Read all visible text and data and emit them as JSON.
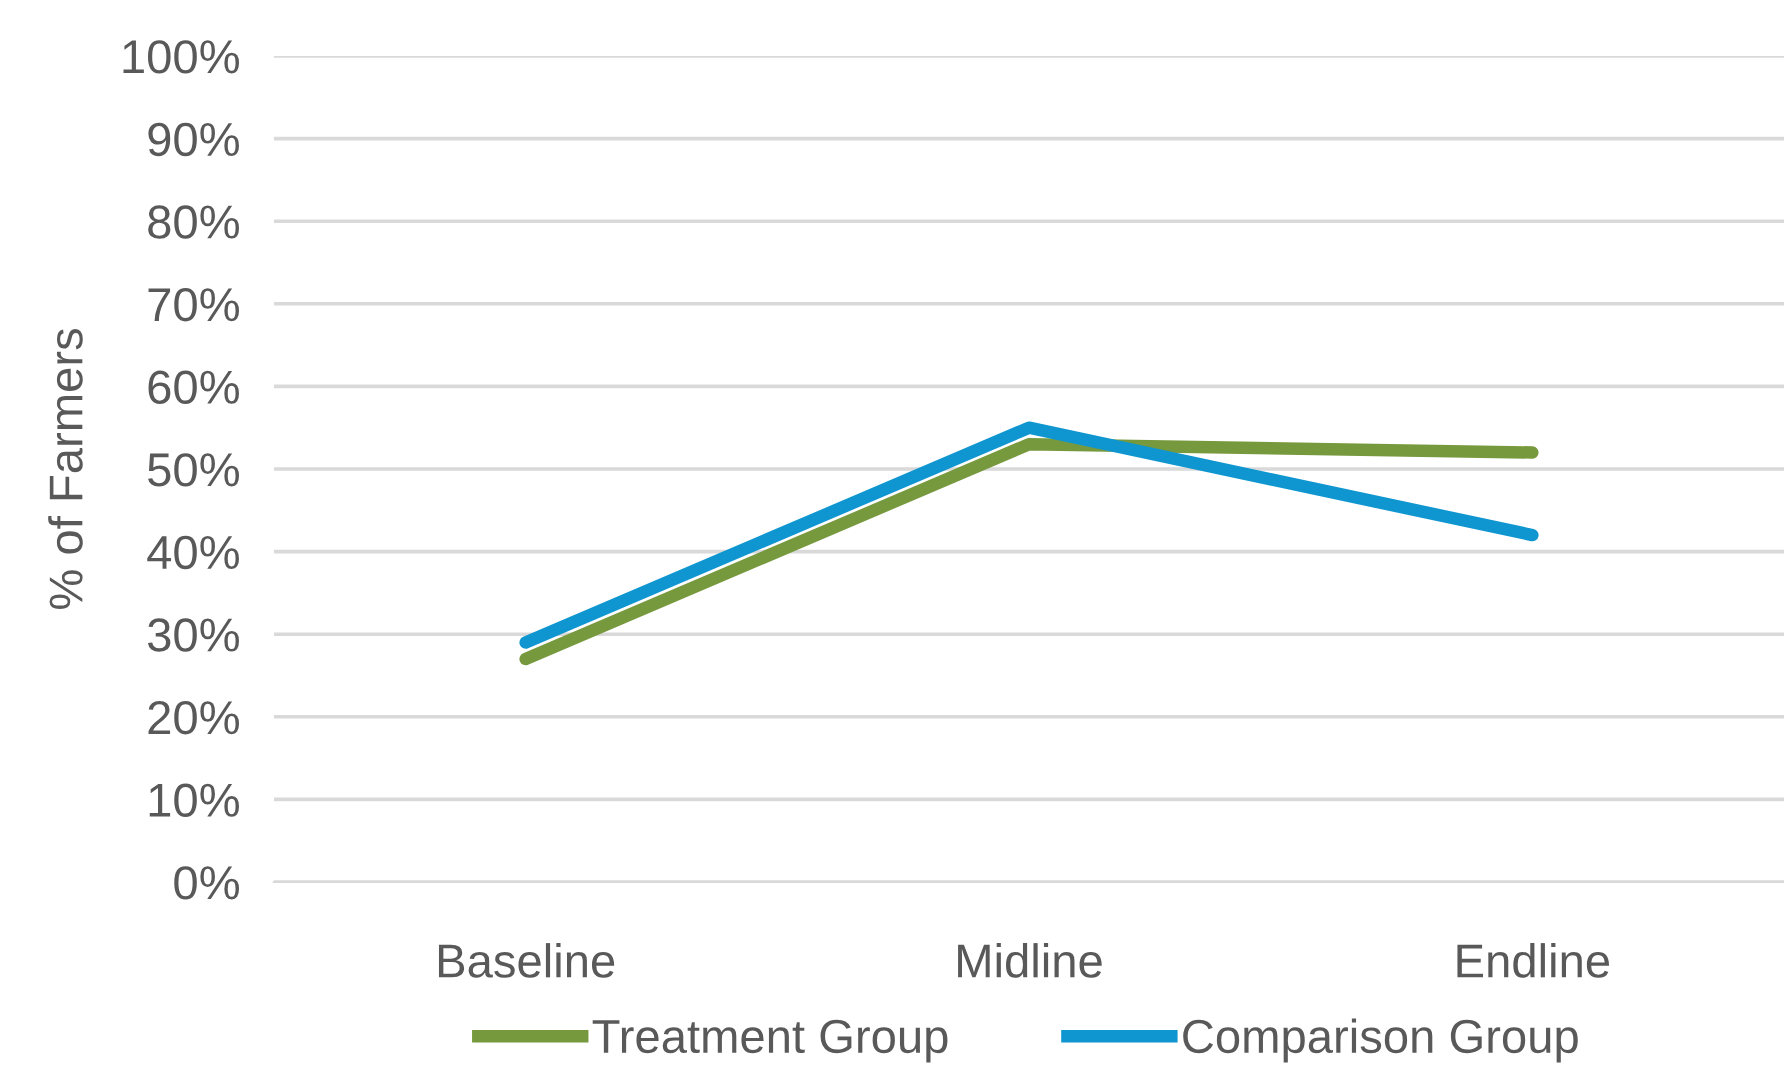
{
  "chart_data": {
    "type": "line",
    "ylabel": "% of Farmers",
    "categories": [
      "Baseline",
      "Midline",
      "Endline"
    ],
    "series": [
      {
        "name": "Treatment Group",
        "color": "#77993d",
        "values": [
          27,
          53,
          52
        ]
      },
      {
        "name": "Comparison Group",
        "color": "#0f96d0",
        "values": [
          29,
          55,
          42
        ]
      }
    ],
    "ylim": [
      0,
      100
    ],
    "yticks": [
      {
        "value": 0,
        "label": "0%"
      },
      {
        "value": 10,
        "label": "10%"
      },
      {
        "value": 20,
        "label": "20%"
      },
      {
        "value": 30,
        "label": "30%"
      },
      {
        "value": 40,
        "label": "40%"
      },
      {
        "value": 50,
        "label": "50%"
      },
      {
        "value": 60,
        "label": "60%"
      },
      {
        "value": 70,
        "label": "70%"
      },
      {
        "value": 80,
        "label": "80%"
      },
      {
        "value": 90,
        "label": "90%"
      },
      {
        "value": 100,
        "label": "100%"
      }
    ],
    "grid": "y",
    "legend": "bottom",
    "marker": "none",
    "line_style": "solid"
  }
}
